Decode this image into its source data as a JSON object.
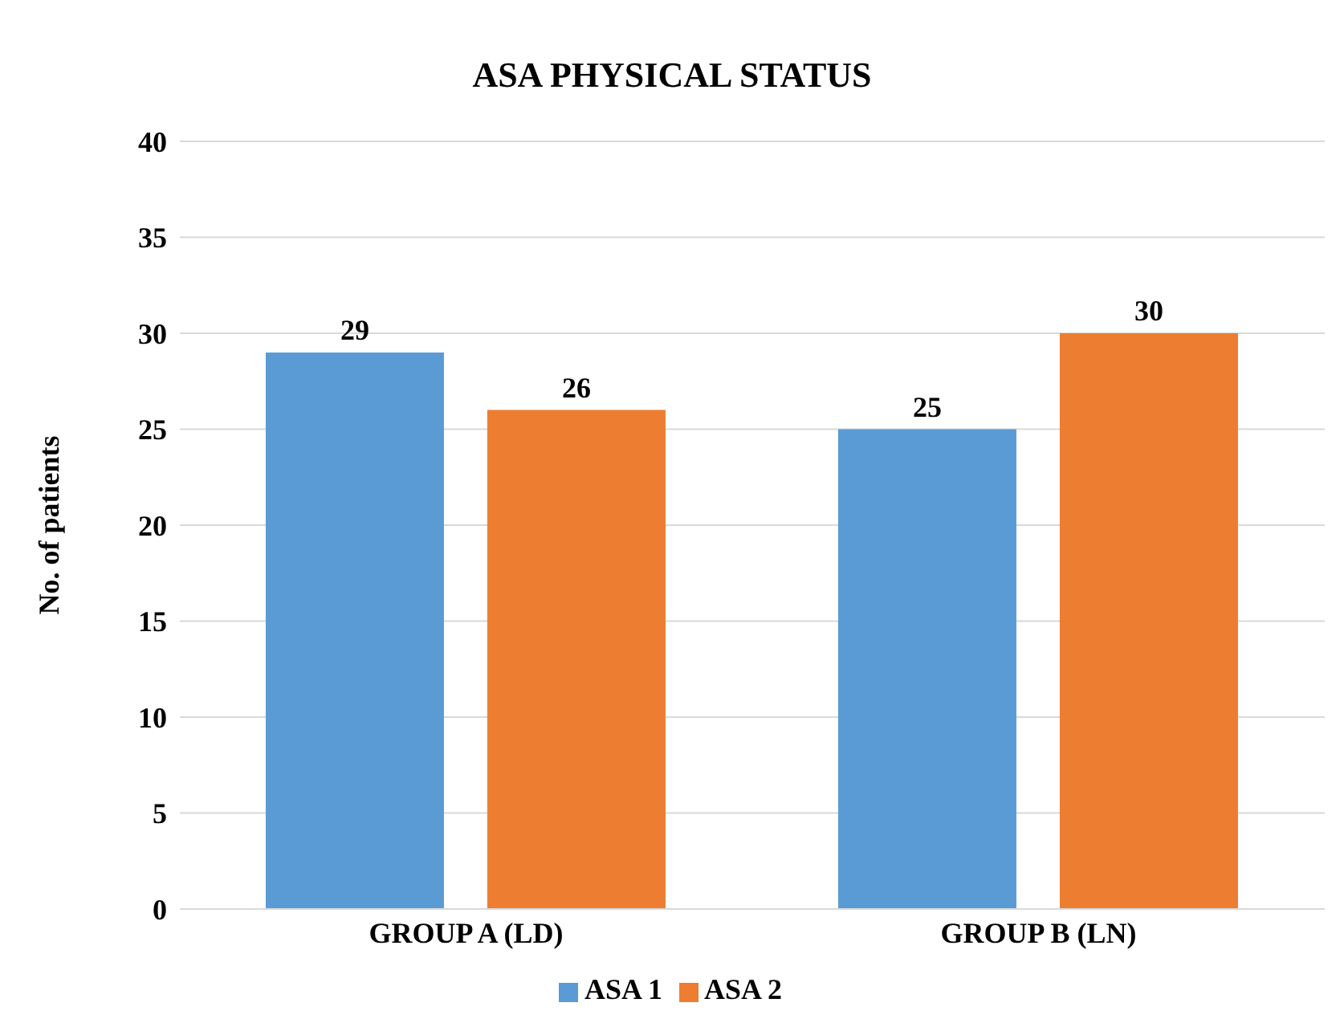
{
  "chart_data": {
    "type": "bar",
    "title": "ASA PHYSICAL STATUS",
    "ylabel": "No. of patients",
    "categories": [
      "GROUP A (LD)",
      "GROUP B (LN)"
    ],
    "series": [
      {
        "name": "ASA 1",
        "color": "#5b9bd5",
        "values": [
          29,
          25
        ]
      },
      {
        "name": "ASA 2",
        "color": "#ed7d31",
        "values": [
          26,
          30
        ]
      }
    ],
    "ylim": [
      0,
      40
    ],
    "yticks": [
      0,
      5,
      10,
      15,
      20,
      25,
      30,
      35,
      40
    ],
    "grid": "y",
    "legend": "bottom",
    "data_labels": true
  }
}
